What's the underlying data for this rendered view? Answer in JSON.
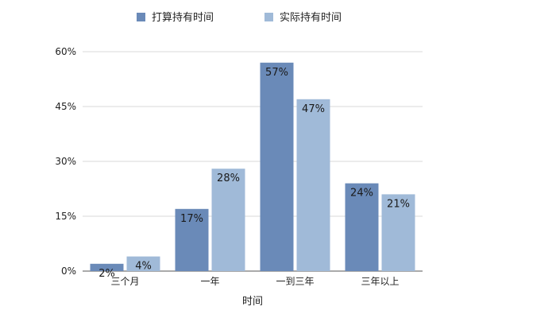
{
  "chart_data": {
    "type": "bar",
    "title": "",
    "xlabel": "时间",
    "ylabel": "",
    "categories": [
      "三个月",
      "一年",
      "一到三年",
      "三年以上"
    ],
    "series": [
      {
        "name": "打算持有时间",
        "values": [
          2,
          17,
          57,
          24
        ],
        "labels": [
          "2%",
          "17%",
          "57%",
          "24%"
        ],
        "color": "#6a8ab8"
      },
      {
        "name": "实际持有时间",
        "values": [
          4,
          28,
          47,
          21
        ],
        "labels": [
          "4%",
          "28%",
          "47%",
          "21%"
        ],
        "color": "#a0bad8"
      }
    ],
    "yticks": [
      0,
      15,
      30,
      45,
      60
    ],
    "ytick_labels": [
      "0%",
      "15%",
      "30%",
      "45%",
      "60%"
    ],
    "ylim": [
      0,
      60
    ],
    "grid": true,
    "legend_position": "top"
  }
}
